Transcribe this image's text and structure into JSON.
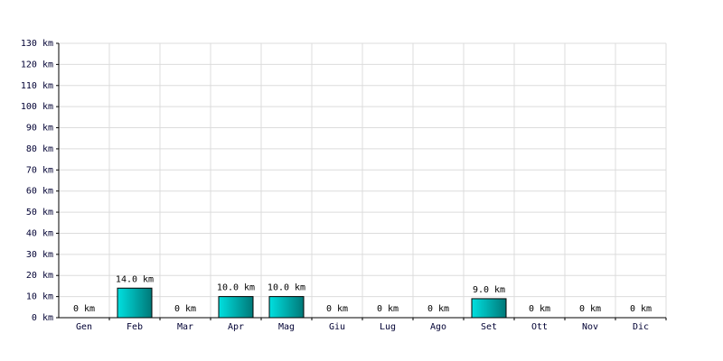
{
  "chart_data": {
    "type": "bar",
    "categories": [
      "Gen",
      "Feb",
      "Mar",
      "Apr",
      "Mag",
      "Giu",
      "Lug",
      "Ago",
      "Set",
      "Ott",
      "Nov",
      "Dic"
    ],
    "values": [
      0,
      14,
      0,
      10,
      10,
      0,
      0,
      0,
      9,
      0,
      0,
      0
    ],
    "value_labels": [
      "0 km",
      "14.0 km",
      "0 km",
      "10.0 km",
      "10.0 km",
      "0 km",
      "0 km",
      "0 km",
      "9.0 km",
      "0 km",
      "0 km",
      "0 km"
    ],
    "color": "#00e0e0",
    "ylim": [
      0,
      130
    ],
    "yticks": [
      {
        "value": 0,
        "label": "0 km"
      },
      {
        "value": 10,
        "label": "10 km"
      },
      {
        "value": 20,
        "label": "20 km"
      },
      {
        "value": 30,
        "label": "30 km"
      },
      {
        "value": 40,
        "label": "40 km"
      },
      {
        "value": 50,
        "label": "50 km"
      },
      {
        "value": 60,
        "label": "60 km"
      },
      {
        "value": 70,
        "label": "70 km"
      },
      {
        "value": 80,
        "label": "80 km"
      },
      {
        "value": 90,
        "label": "90 km"
      },
      {
        "value": 100,
        "label": "100 km"
      },
      {
        "value": 110,
        "label": "110 km"
      },
      {
        "value": 120,
        "label": "120 km"
      },
      {
        "value": 130,
        "label": "130 km"
      }
    ],
    "grid": true
  }
}
